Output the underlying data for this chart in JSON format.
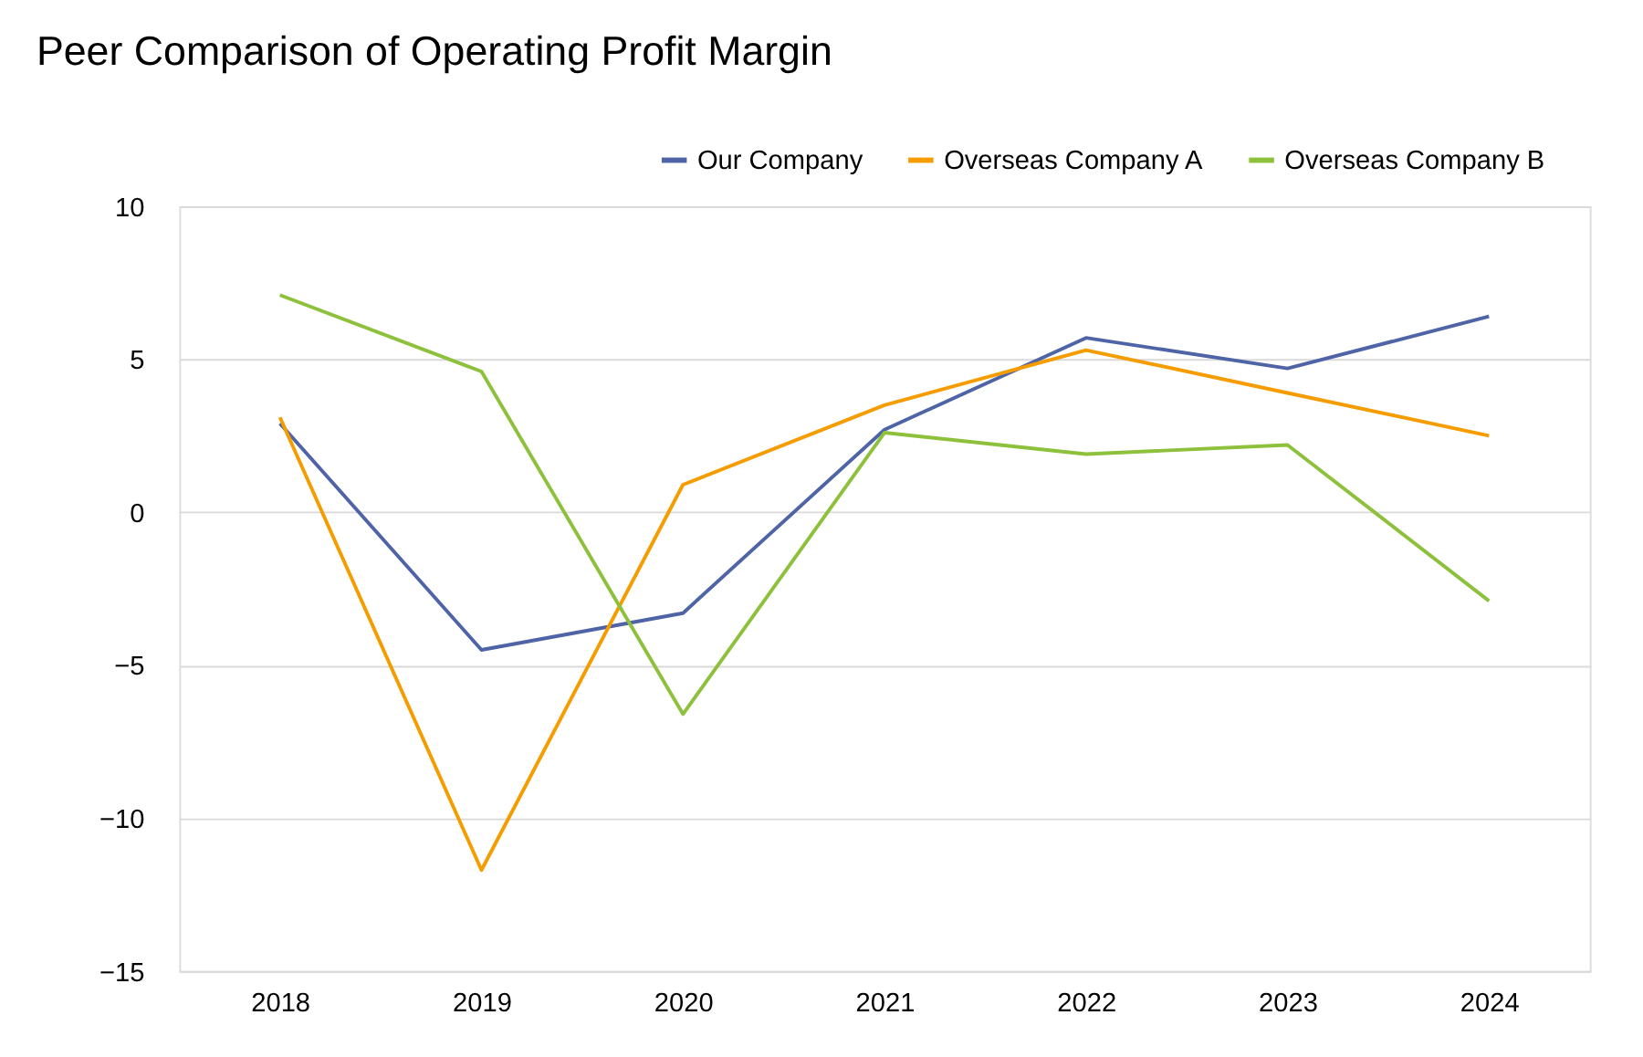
{
  "chart_data": {
    "type": "line",
    "title": "Peer Comparison of Operating Profit Margin",
    "categories": [
      "2018",
      "2019",
      "2020",
      "2021",
      "2022",
      "2023",
      "2024"
    ],
    "series": [
      {
        "name": "Our Company",
        "color": "#4e64a6",
        "values": [
          2.9,
          -4.5,
          -3.3,
          2.7,
          5.7,
          4.7,
          6.4
        ]
      },
      {
        "name": "Overseas Company A",
        "color": "#f59c00",
        "values": [
          3.1,
          -11.7,
          0.9,
          3.5,
          5.3,
          3.9,
          2.5
        ]
      },
      {
        "name": "Overseas Company B",
        "color": "#8dc03b",
        "values": [
          7.1,
          4.6,
          -6.6,
          2.6,
          1.9,
          2.2,
          -2.9
        ]
      }
    ],
    "ylim": [
      -15,
      10
    ],
    "yticks": [
      -15,
      -10,
      -5,
      0,
      5,
      10
    ],
    "grid": "y",
    "legend": "top right",
    "marker": "none",
    "line_style": "solid"
  }
}
